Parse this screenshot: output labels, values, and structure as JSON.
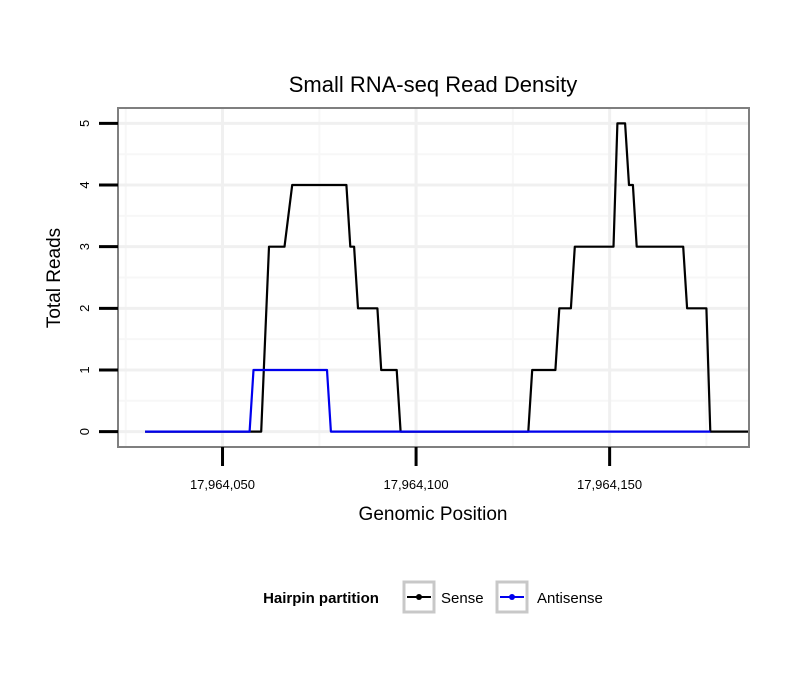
{
  "chart_data": {
    "type": "line",
    "title": "Small RNA-seq Read Density",
    "xlabel": "Genomic Position",
    "ylabel": "Total Reads",
    "xlim": [
      17964023,
      17964186
    ],
    "ylim": [
      -0.25,
      5.25
    ],
    "x_ticks": [
      17964050,
      17964100,
      17964150
    ],
    "x_tick_labels": [
      "17,964,050",
      "17,964,100",
      "17,964,150"
    ],
    "y_ticks": [
      0,
      1,
      2,
      3,
      4,
      5
    ],
    "y_tick_labels": [
      "0",
      "1",
      "2",
      "3",
      "4",
      "5"
    ],
    "grid": true,
    "legend": {
      "title": "Hairpin partition",
      "position": "bottom",
      "entries": [
        "Sense",
        "Antisense"
      ]
    },
    "series": [
      {
        "name": "Sense",
        "color": "#000000",
        "x": [
          17964030,
          17964060,
          17964062,
          17964066,
          17964068,
          17964072,
          17964074,
          17964082,
          17964083,
          17964084,
          17964085,
          17964090,
          17964091,
          17964095,
          17964096,
          17964129,
          17964130,
          17964136,
          17964137,
          17964140,
          17964141,
          17964151,
          17964152,
          17964154,
          17964155,
          17964156,
          17964157,
          17964158,
          17964159,
          17964169,
          17964170,
          17964175,
          17964176,
          17964186
        ],
        "values": [
          0,
          0,
          3,
          3,
          4,
          4,
          4,
          4,
          3,
          3,
          2,
          2,
          1,
          1,
          0,
          0,
          1,
          1,
          2,
          2,
          3,
          3,
          5,
          5,
          4,
          4,
          3,
          3,
          3,
          3,
          2,
          2,
          0,
          0
        ]
      },
      {
        "name": "Antisense",
        "color": "#0000ee",
        "x": [
          17964030,
          17964057,
          17964058,
          17964077,
          17964078,
          17964176
        ],
        "values": [
          0,
          0,
          1,
          1,
          0,
          0
        ]
      }
    ]
  }
}
